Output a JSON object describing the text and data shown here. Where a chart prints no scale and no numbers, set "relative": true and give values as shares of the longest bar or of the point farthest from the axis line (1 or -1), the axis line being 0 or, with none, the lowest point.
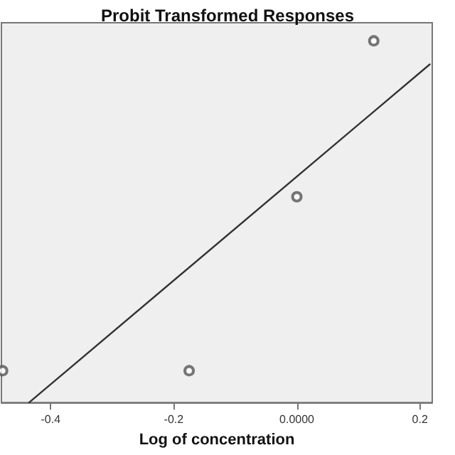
{
  "chart_data": {
    "type": "scatter",
    "title": "Probit Transformed Responses",
    "xlabel": "Log of concentration",
    "relative": true,
    "xlim": [
      -0.48,
      0.22
    ],
    "xticks": [
      {
        "value": -0.4,
        "label": "-0.4"
      },
      {
        "value": -0.2,
        "label": "-0.2"
      },
      {
        "value": 0,
        "label": "0.0000"
      },
      {
        "value": 0.2,
        "label": "0.2"
      }
    ],
    "marker": "circle",
    "grid": false,
    "series": [
      {
        "color": "#555555",
        "x": [
          -0.478,
          -0.175,
          0.0,
          0.125
        ],
        "values": [
          0.088,
          0.088,
          0.569,
          1
        ]
      },
      {
        "type": "line",
        "marker": "none",
        "color": "#333333",
        "x": [
          -0.435,
          0.216
        ],
        "values": [
          0,
          0.935
        ]
      }
    ]
  }
}
